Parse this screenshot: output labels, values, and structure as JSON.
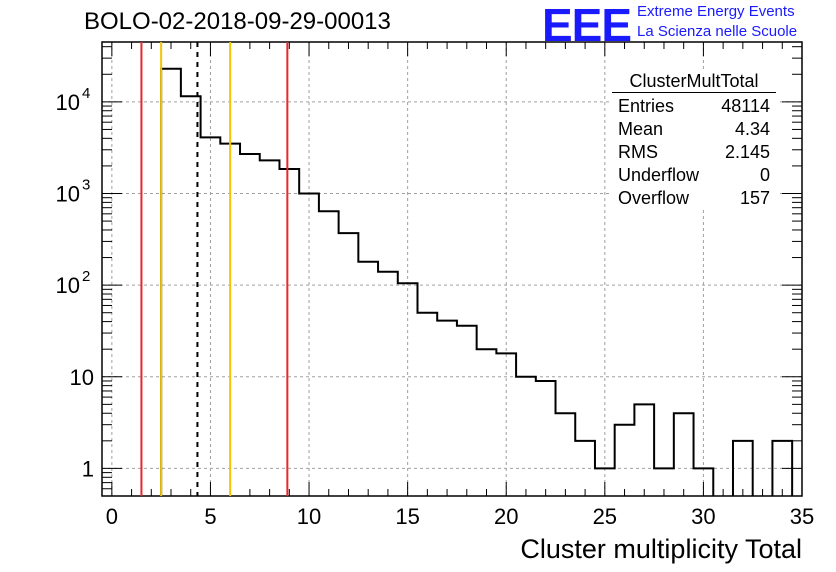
{
  "header": {
    "title": "BOLO-02-2018-09-29-00013",
    "logo": "EEE",
    "brand_line1": "Extreme Energy Events",
    "brand_line2": "La Scienza nelle Scuole"
  },
  "stats": {
    "title": "ClusterMultTotal",
    "rows": [
      {
        "label": "Entries",
        "value": "48114"
      },
      {
        "label": "Mean",
        "value": "4.34"
      },
      {
        "label": "RMS",
        "value": "2.145"
      },
      {
        "label": "Underflow",
        "value": "0"
      },
      {
        "label": "Overflow",
        "value": "157"
      }
    ]
  },
  "chart_data": {
    "type": "histogram",
    "title": "BOLO-02-2018-09-29-00013",
    "xlabel": "Cluster multiplicity Total",
    "ylabel": "",
    "xlim": [
      -0.5,
      35
    ],
    "ylim": [
      0.5,
      45000
    ],
    "log_y": true,
    "grid": true,
    "bin_width": 1,
    "bins": [
      {
        "low": 2.5,
        "high": 3.5,
        "value": 23000
      },
      {
        "low": 3.5,
        "high": 4.5,
        "value": 11500
      },
      {
        "low": 4.5,
        "high": 5.5,
        "value": 4100
      },
      {
        "low": 5.5,
        "high": 6.5,
        "value": 3500
      },
      {
        "low": 6.5,
        "high": 7.5,
        "value": 2700
      },
      {
        "low": 7.5,
        "high": 8.5,
        "value": 2300
      },
      {
        "low": 8.5,
        "high": 9.5,
        "value": 1850
      },
      {
        "low": 9.5,
        "high": 10.5,
        "value": 1000
      },
      {
        "low": 10.5,
        "high": 11.5,
        "value": 640
      },
      {
        "low": 11.5,
        "high": 12.5,
        "value": 370
      },
      {
        "low": 12.5,
        "high": 13.5,
        "value": 180
      },
      {
        "low": 13.5,
        "high": 14.5,
        "value": 140
      },
      {
        "low": 14.5,
        "high": 15.5,
        "value": 105
      },
      {
        "low": 15.5,
        "high": 16.5,
        "value": 50
      },
      {
        "low": 16.5,
        "high": 17.5,
        "value": 41
      },
      {
        "low": 17.5,
        "high": 18.5,
        "value": 36
      },
      {
        "low": 18.5,
        "high": 19.5,
        "value": 20
      },
      {
        "low": 19.5,
        "high": 20.5,
        "value": 18
      },
      {
        "low": 20.5,
        "high": 21.5,
        "value": 10
      },
      {
        "low": 21.5,
        "high": 22.5,
        "value": 9
      },
      {
        "low": 22.5,
        "high": 23.5,
        "value": 4
      },
      {
        "low": 23.5,
        "high": 24.5,
        "value": 2
      },
      {
        "low": 24.5,
        "high": 25.5,
        "value": 1
      },
      {
        "low": 25.5,
        "high": 26.5,
        "value": 3
      },
      {
        "low": 26.5,
        "high": 27.5,
        "value": 5
      },
      {
        "low": 27.5,
        "high": 28.5,
        "value": 1
      },
      {
        "low": 28.5,
        "high": 29.5,
        "value": 4
      },
      {
        "low": 29.5,
        "high": 30.5,
        "value": 1
      },
      {
        "low": 31.5,
        "high": 32.5,
        "value": 2
      },
      {
        "low": 33.5,
        "high": 34.5,
        "value": 2
      }
    ],
    "vertical_lines": [
      {
        "x": 1.5,
        "color": "#e8262c",
        "style": "solid"
      },
      {
        "x": 2.5,
        "color": "#f5c400",
        "style": "solid"
      },
      {
        "x": 4.34,
        "color": "#000000",
        "style": "dashed"
      },
      {
        "x": 6.0,
        "color": "#f5c400",
        "style": "solid"
      },
      {
        "x": 8.9,
        "color": "#e8262c",
        "style": "solid"
      }
    ],
    "x_ticks": [
      "0",
      "5",
      "10",
      "15",
      "20",
      "25",
      "30",
      "35"
    ],
    "x_tick_values": [
      0,
      5,
      10,
      15,
      20,
      25,
      30,
      35
    ],
    "y_ticks": [
      {
        "value": 1,
        "base": "1",
        "exp": ""
      },
      {
        "value": 10,
        "base": "10",
        "exp": ""
      },
      {
        "value": 100,
        "base": "10",
        "exp": "2"
      },
      {
        "value": 1000,
        "base": "10",
        "exp": "3"
      },
      {
        "value": 10000,
        "base": "10",
        "exp": "4"
      }
    ]
  }
}
